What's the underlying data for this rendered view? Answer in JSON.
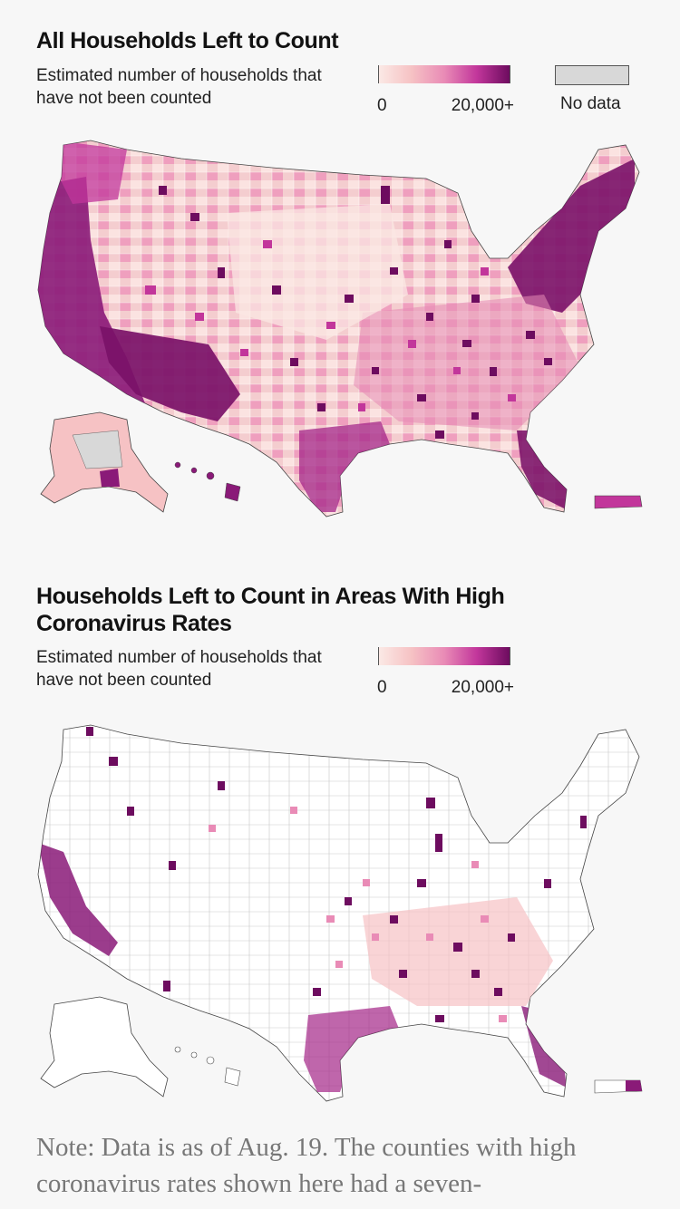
{
  "maps": [
    {
      "title": "All Households Left to Count",
      "subtitle": "Estimated number of households that have not been counted",
      "legend": {
        "min_label": "0",
        "max_label": "20,000+",
        "nodata_label": "No data"
      }
    },
    {
      "title": "Households Left to Count in Areas With High Coronavirus Rates",
      "subtitle": "Estimated number of households that have not been counted",
      "legend": {
        "min_label": "0",
        "max_label": "20,000+"
      }
    }
  ],
  "note": "Note: Data is as of Aug. 19. The counties with high coronavirus rates shown here had a seven-",
  "colors": {
    "scale": [
      "#fbe9e5",
      "#f6c2c4",
      "#e98bb6",
      "#c2369b",
      "#6d0c5f"
    ],
    "nodata": "#d8d8d8",
    "land_empty": "#ffffff",
    "border": "#444444"
  }
}
